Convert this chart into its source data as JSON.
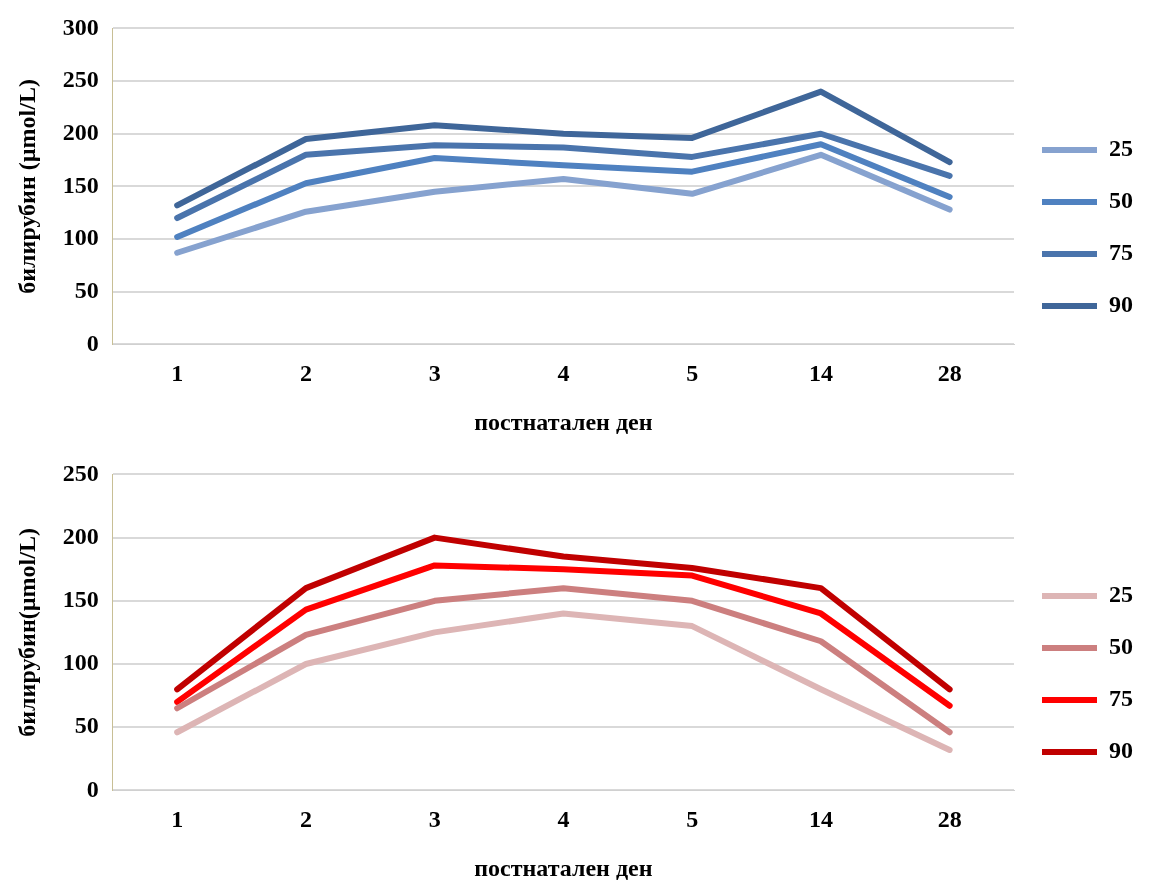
{
  "chart_data": [
    {
      "type": "line",
      "xlabel": "постнатален ден",
      "ylabel": "билирубин (µmol/L)",
      "categories": [
        "1",
        "2",
        "3",
        "4",
        "5",
        "14",
        "28"
      ],
      "ylim": [
        0,
        300
      ],
      "yticks": [
        0,
        50,
        100,
        150,
        200,
        250,
        300
      ],
      "grid": "y",
      "legend": "right",
      "marker": "none",
      "line_style": "solid",
      "series": [
        {
          "name": "25",
          "color": "#86a2cf",
          "values": [
            87,
            126,
            145,
            157,
            143,
            180,
            128
          ]
        },
        {
          "name": "50",
          "color": "#4f81c0",
          "values": [
            102,
            153,
            177,
            170,
            164,
            190,
            140
          ]
        },
        {
          "name": "75",
          "color": "#4a74ac",
          "values": [
            120,
            180,
            189,
            187,
            178,
            200,
            160
          ]
        },
        {
          "name": "90",
          "color": "#3f6699",
          "values": [
            132,
            195,
            208,
            200,
            196,
            240,
            173
          ]
        }
      ]
    },
    {
      "type": "line",
      "xlabel": "постнатален ден",
      "ylabel": "билирубин(µmol/L)",
      "categories": [
        "1",
        "2",
        "3",
        "4",
        "5",
        "14",
        "28"
      ],
      "ylim": [
        0,
        250
      ],
      "yticks": [
        0,
        50,
        100,
        150,
        200,
        250
      ],
      "grid": "y",
      "legend": "right",
      "marker": "none",
      "line_style": "solid",
      "series": [
        {
          "name": "25",
          "color": "#ddb5b5",
          "values": [
            46,
            100,
            125,
            140,
            130,
            80,
            32
          ]
        },
        {
          "name": "50",
          "color": "#cc7f7f",
          "values": [
            65,
            123,
            150,
            160,
            150,
            118,
            46
          ]
        },
        {
          "name": "75",
          "color": "#ff0000",
          "values": [
            70,
            143,
            178,
            175,
            170,
            140,
            67
          ]
        },
        {
          "name": "90",
          "color": "#c00000",
          "values": [
            80,
            160,
            200,
            185,
            176,
            160,
            80
          ]
        }
      ]
    }
  ]
}
